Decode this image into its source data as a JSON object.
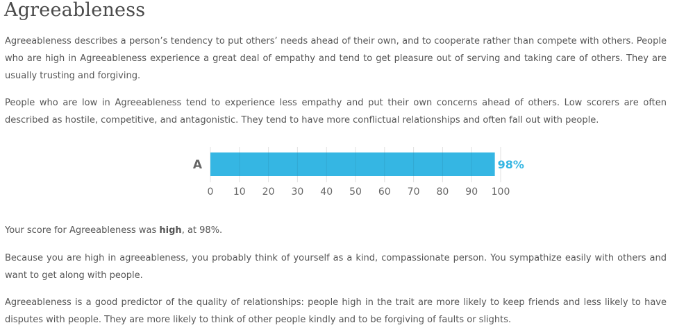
{
  "page": {
    "heading": "Agreeableness",
    "intro_1": "Agreeableness describes a person’s tendency to put others’ needs ahead of their own, and to cooperate rather than compete with others. People who are high in Agreeableness experience a great deal of empathy and tend to get pleasure out of serving and taking care of others. They are usually trusting and forgiving.",
    "intro_2": "People who are low in Agreeableness tend to experience less empathy and put their own concerns ahead of others. Low scorers are often described as hostile, competitive, and antagonistic. They tend to have more conflictual relationships and often fall out with people.",
    "score_prefix": "Your score for Agreeableness was ",
    "score_level": "high",
    "score_suffix": ", at 98%.",
    "detail_1": "Because you are high in agreeableness, you probably think of yourself as a kind, compassionate person. You sympathize easily with others and want to get along with people.",
    "detail_2": "Agreeableness is a good predictor of the quality of relationships: people high in the trait are more likely to keep friends and less likely to have disputes with people. They are more likely to think of other people kindly and to be forgiving of faults or slights."
  },
  "chart_data": {
    "type": "bar",
    "orientation": "horizontal",
    "categories": [
      "A"
    ],
    "values": [
      98
    ],
    "value_labels": [
      "98%"
    ],
    "xlim": [
      0,
      100
    ],
    "x_ticks": [
      0,
      10,
      20,
      30,
      40,
      50,
      60,
      70,
      80,
      90,
      100
    ],
    "grid": true,
    "legend": "none",
    "colors": {
      "bar": "#35b6e3",
      "value_label": "#35b6e3",
      "category_label": "#666666",
      "grid": "#e1e1e1",
      "tick_label": "#666666"
    }
  }
}
